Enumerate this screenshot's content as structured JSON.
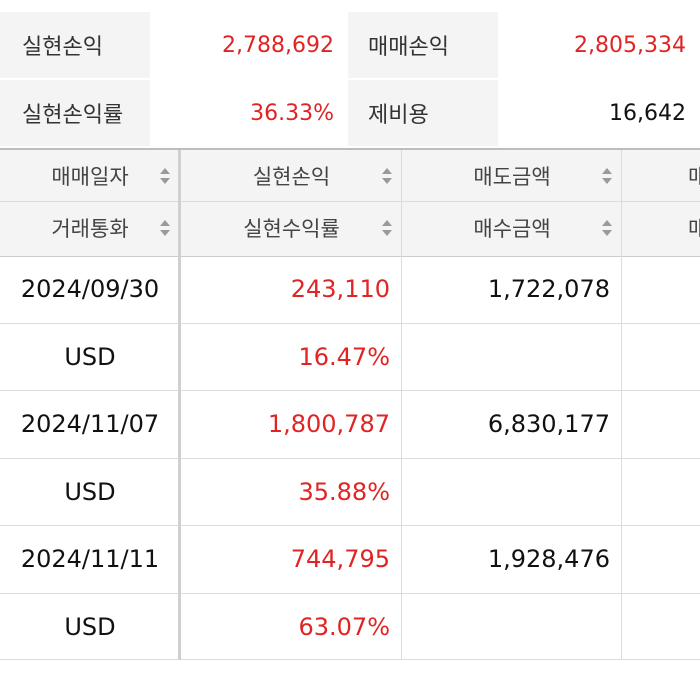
{
  "summary": {
    "realized_pl_label": "실현손익",
    "realized_pl_value": "2,788,692",
    "trade_pl_label": "매매손익",
    "trade_pl_value": "2,805,334",
    "realized_rate_label": "실현손익률",
    "realized_rate_value": "36.33%",
    "fee_label": "제비용",
    "fee_value": "16,642"
  },
  "table": {
    "headers_row1": [
      "매매일자",
      "실현손익",
      "매도금액",
      "매"
    ],
    "headers_row2": [
      "거래통화",
      "실현수익률",
      "매수금액",
      "매"
    ],
    "rows": [
      {
        "date": "2024/09/30",
        "currency": "USD",
        "realized_pl": "243,110",
        "realized_rate": "16.47%",
        "sell_amount": "1,722,078",
        "buy_amount": ""
      },
      {
        "date": "2024/11/07",
        "currency": "USD",
        "realized_pl": "1,800,787",
        "realized_rate": "35.88%",
        "sell_amount": "6,830,177",
        "buy_amount": ""
      },
      {
        "date": "2024/11/11",
        "currency": "USD",
        "realized_pl": "744,795",
        "realized_rate": "63.07%",
        "sell_amount": "1,928,476",
        "buy_amount": ""
      }
    ]
  },
  "colors": {
    "profit": "#e02424",
    "header_bg": "#f4f4f4",
    "text": "#111111"
  }
}
